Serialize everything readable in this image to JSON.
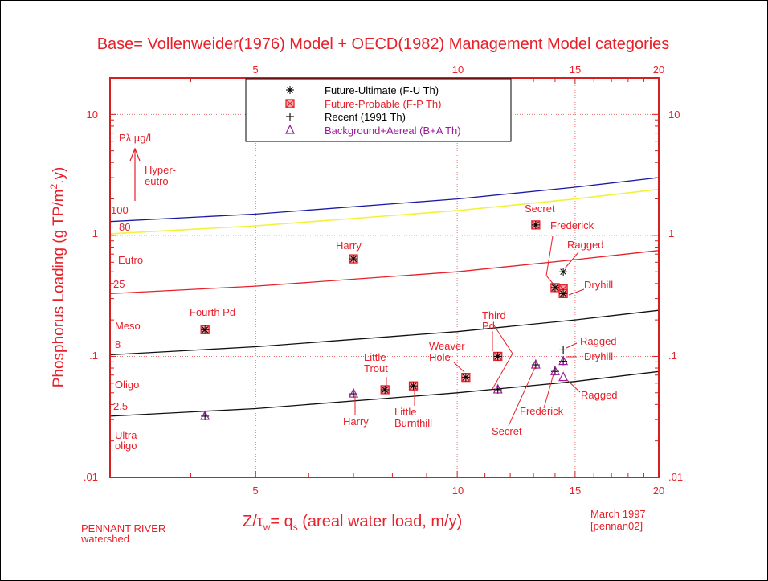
{
  "chart_data": {
    "type": "scatter",
    "title": "Base= Vollenweider(1976) Model + OECD(1982) Management Model categories",
    "xlabel": "Z/τw= qs (areal water load, m/y)",
    "xlabel_parts": {
      "a": "Z/τ",
      "sub1": "w",
      "b": "= q",
      "sub2": "s",
      "c": " (areal water load, m/y)"
    },
    "ylabel": "Phosphorus Loading (g TP/m2.y)",
    "ylabel_parts": {
      "a": "Phosphorus Loading (g TP/m",
      "sup": "2",
      "b": ".y)"
    },
    "x_scale": "log",
    "y_scale": "log",
    "xlim": [
      3.03,
      20
    ],
    "ylim": [
      0.01,
      20
    ],
    "x_ticks": [
      {
        "v": 5,
        "label": "5"
      },
      {
        "v": 10,
        "label": "10"
      },
      {
        "v": 15,
        "label": "15"
      },
      {
        "v": 20,
        "label": "20"
      }
    ],
    "y_ticks": [
      {
        "v": 10,
        "label": "10"
      },
      {
        "v": 1,
        "label": "1"
      },
      {
        "v": 0.1,
        "label": ".1"
      },
      {
        "v": 0.01,
        "label": ".01"
      }
    ],
    "grid": "dotted at labeled ticks",
    "legend": {
      "position": "top-center",
      "entries": [
        {
          "marker": "asterisk",
          "label": "Future-Ultimate (F-U Th)",
          "color": "#000000"
        },
        {
          "marker": "boxed-x",
          "label": "Future-Probable (F-P Th)",
          "color": "#e8202a"
        },
        {
          "marker": "plus",
          "label": "Recent (1991 Th)",
          "color": "#000000"
        },
        {
          "marker": "triangle",
          "label": "Background+Aereal (B+A Th)",
          "color": "#9b1b9b"
        }
      ]
    },
    "curves": [
      {
        "name": "100 µg/l",
        "label": "100",
        "color": "#1a1aa6",
        "x": [
          3.03,
          5,
          10,
          15,
          20
        ],
        "y": [
          1.3,
          1.5,
          2.0,
          2.5,
          3.0
        ]
      },
      {
        "name": "80 µg/l",
        "label": "80",
        "color": "#f2f23a",
        "x": [
          3.03,
          5,
          10,
          15,
          20
        ],
        "y": [
          1.03,
          1.2,
          1.6,
          2.0,
          2.4
        ]
      },
      {
        "name": "25 µg/l",
        "label": "25",
        "color": "#e8202a",
        "x": [
          3.03,
          5,
          10,
          15,
          20
        ],
        "y": [
          0.33,
          0.38,
          0.5,
          0.63,
          0.75
        ]
      },
      {
        "name": "8 µg/l",
        "label": "8",
        "color": "#111111",
        "x": [
          3.03,
          5,
          10,
          15,
          20
        ],
        "y": [
          0.103,
          0.12,
          0.16,
          0.2,
          0.24
        ]
      },
      {
        "name": "2.5 µg/l",
        "label": "2.5",
        "color": "#111111",
        "x": [
          3.03,
          5,
          10,
          15,
          20
        ],
        "y": [
          0.032,
          0.037,
          0.05,
          0.062,
          0.075
        ]
      }
    ],
    "category_labels": [
      {
        "text": "Hyper-",
        "text2": "eutro"
      },
      {
        "text": "Eutro",
        "text2": ""
      },
      {
        "text": "Meso",
        "text2": ""
      },
      {
        "text": "Oligo",
        "text2": ""
      },
      {
        "text": "Ultra-",
        "text2": "oligo"
      }
    ],
    "arrow_label": "Pλ µg/l",
    "series": [
      {
        "name": "Future-Probable (F-P Th)",
        "marker": "boxed-x",
        "points": [
          {
            "lake": "Fourth Pd",
            "x": 4.2,
            "y": 0.166
          },
          {
            "lake": "Harry",
            "x": 7.0,
            "y": 0.64
          },
          {
            "lake": "Little Trout",
            "x": 7.8,
            "y": 0.053
          },
          {
            "lake": "Little Burnthill",
            "x": 8.6,
            "y": 0.057
          },
          {
            "lake": "Weaver Hole",
            "x": 10.3,
            "y": 0.067
          },
          {
            "lake": "Third Pd",
            "x": 11.5,
            "y": 0.1
          },
          {
            "lake": "Secret",
            "x": 13.1,
            "y": 1.22
          },
          {
            "lake": "Frederick",
            "x": 14.0,
            "y": 0.37
          },
          {
            "lake": "Ragged",
            "x": 14.4,
            "y": 0.36
          },
          {
            "lake": "Dryhill",
            "x": 14.4,
            "y": 0.33
          }
        ]
      },
      {
        "name": "Future-Ultimate (F-U Th)",
        "marker": "asterisk",
        "points": [
          {
            "lake": "Fourth Pd",
            "x": 4.2,
            "y": 0.166
          },
          {
            "lake": "Harry",
            "x": 7.0,
            "y": 0.64
          },
          {
            "lake": "Little Trout",
            "x": 7.8,
            "y": 0.053
          },
          {
            "lake": "Little Burnthill",
            "x": 8.6,
            "y": 0.057
          },
          {
            "lake": "Weaver Hole",
            "x": 10.3,
            "y": 0.067
          },
          {
            "lake": "Third Pd",
            "x": 11.5,
            "y": 0.1
          },
          {
            "lake": "Secret",
            "x": 13.1,
            "y": 1.22
          },
          {
            "lake": "Frederick",
            "x": 14.0,
            "y": 0.37
          },
          {
            "lake": "Ragged",
            "x": 14.4,
            "y": 0.5
          },
          {
            "lake": "Dryhill",
            "x": 14.4,
            "y": 0.33
          }
        ]
      },
      {
        "name": "Recent (1991 Th)",
        "marker": "plus",
        "points": [
          {
            "lake": "Fourth Pd",
            "x": 4.2,
            "y": 0.032
          },
          {
            "lake": "Harry",
            "x": 7.0,
            "y": 0.049
          },
          {
            "lake": "Third Pd",
            "x": 11.5,
            "y": 0.053
          },
          {
            "lake": "Secret",
            "x": 13.1,
            "y": 0.085
          },
          {
            "lake": "Frederick",
            "x": 14.0,
            "y": 0.075
          },
          {
            "lake": "Ragged",
            "x": 14.4,
            "y": 0.113
          },
          {
            "lake": "Dryhill",
            "x": 14.4,
            "y": 0.091
          }
        ]
      },
      {
        "name": "Background+Aereal (B+A Th)",
        "marker": "triangle",
        "points": [
          {
            "lake": "Fourth Pd",
            "x": 4.2,
            "y": 0.032
          },
          {
            "lake": "Harry",
            "x": 7.0,
            "y": 0.049
          },
          {
            "lake": "Third Pd",
            "x": 11.5,
            "y": 0.053
          },
          {
            "lake": "Secret",
            "x": 13.1,
            "y": 0.085
          },
          {
            "lake": "Frederick",
            "x": 14.0,
            "y": 0.075
          },
          {
            "lake": "Ragged",
            "x": 14.4,
            "y": 0.067
          },
          {
            "lake": "Dryhill",
            "x": 14.4,
            "y": 0.091
          }
        ]
      }
    ],
    "annotations": [
      {
        "text": "Fourth Pd"
      },
      {
        "text": "Harry"
      },
      {
        "text": "Secret"
      },
      {
        "text": "Frederick"
      },
      {
        "text": "Ragged"
      },
      {
        "text": "Dryhill"
      },
      {
        "text": "Third",
        "text2": "Pd"
      },
      {
        "text": "Weaver",
        "text2": "Hole"
      },
      {
        "text": "Little",
        "text2": "Trout"
      },
      {
        "text": "Little",
        "text2": "Burnthill"
      },
      {
        "text": "Harry"
      },
      {
        "text": "Secret"
      },
      {
        "text": "Frederick"
      },
      {
        "text": "Ragged"
      },
      {
        "text": "Dryhill"
      },
      {
        "text": "Ragged"
      }
    ]
  },
  "footer": {
    "left_line1": "PENNANT RIVER",
    "left_line2": "watershed",
    "right_line1": "March 1997",
    "right_line2": "[pennan02]"
  },
  "colors": {
    "axis": "#e8202a",
    "grid": "#e87070",
    "text": "#e8202a",
    "legend_fu": "#000000",
    "legend_ba": "#9b1b9b"
  }
}
